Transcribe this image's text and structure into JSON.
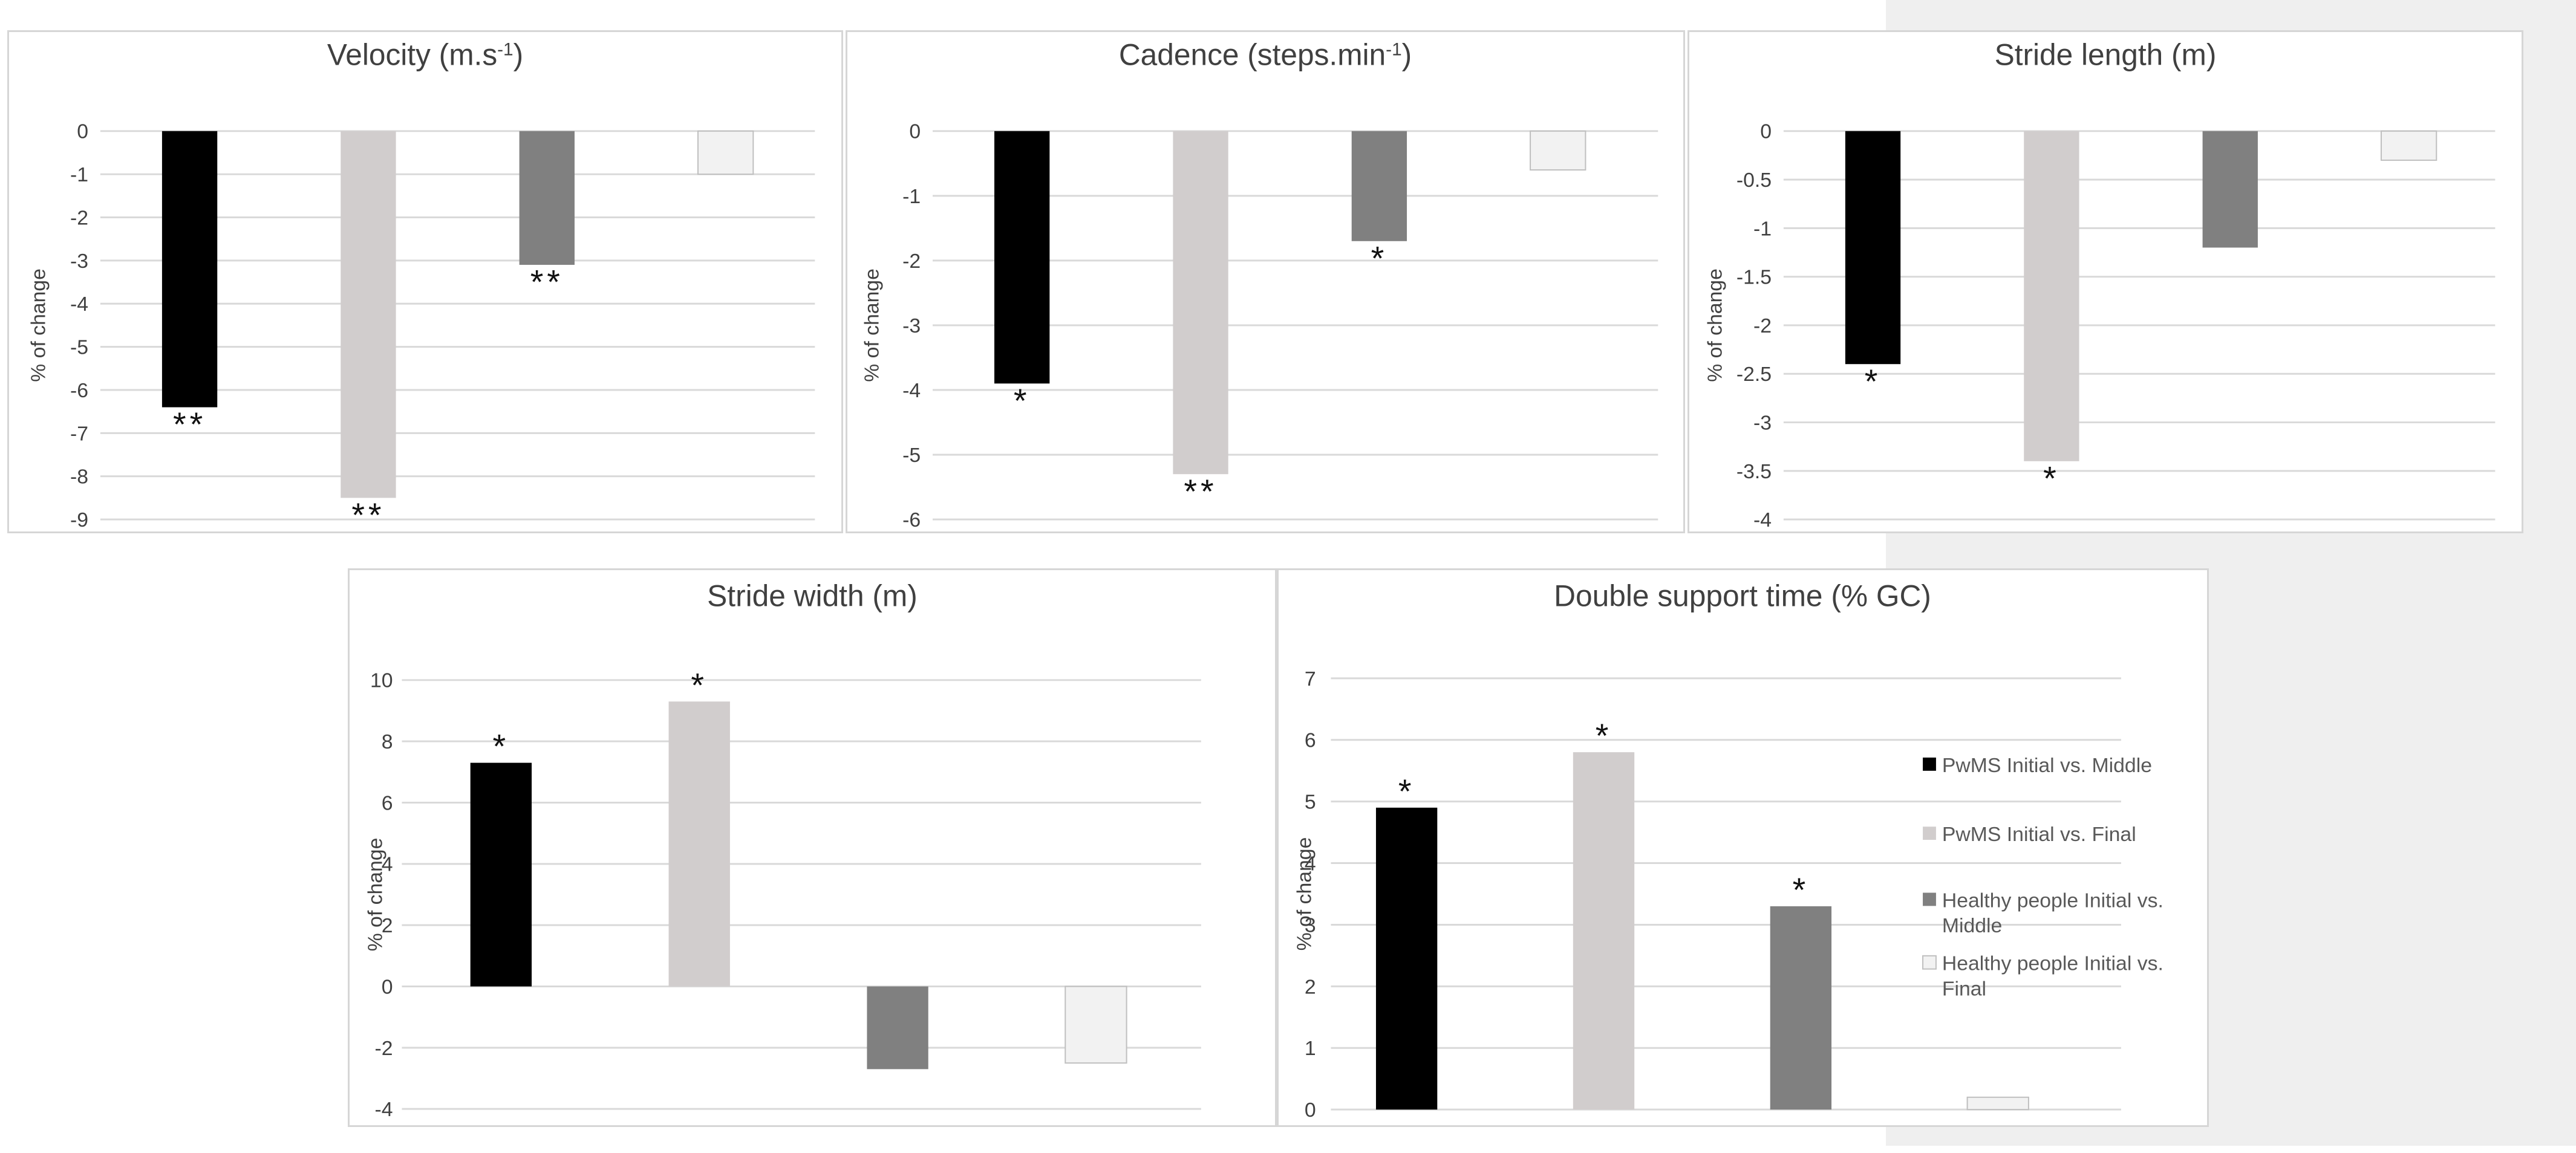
{
  "colors": {
    "pwms_mid": "#000000",
    "pwms_final": "#d1cdcd",
    "healthy_mid": "#808080",
    "healthy_final": "#f2f2f2",
    "grid": "#d9d9d9",
    "text": "#404040"
  },
  "legend": {
    "items": [
      {
        "lines": [
          "PwMS Initial vs. Middle"
        ]
      },
      {
        "lines": [
          "PwMS Initial vs. Final"
        ]
      },
      {
        "lines": [
          "Healthy people Initial vs.",
          "Middle"
        ]
      },
      {
        "lines": [
          "Healthy people Initial vs.",
          "Final"
        ]
      }
    ]
  },
  "chart_data": [
    {
      "type": "bar",
      "title": "Velocity (m.s",
      "title_superscript": "-1",
      "title_suffix": ")",
      "ylabel": "% of change",
      "ylim": [
        -9,
        0
      ],
      "yticks": [
        0,
        -1,
        -2,
        -3,
        -4,
        -5,
        -6,
        -7,
        -8,
        -9
      ],
      "ytick_labels": [
        "0",
        "-1",
        "-2",
        "-3",
        "-4",
        "-5",
        "-6",
        "-7",
        "-8",
        "-9"
      ],
      "series": [
        {
          "name": "PwMS Initial vs. Middle",
          "value": -6.4,
          "annotation": "**"
        },
        {
          "name": "PwMS Initial vs. Final",
          "value": -8.5,
          "annotation": "**"
        },
        {
          "name": "Healthy people Initial vs. Middle",
          "value": -3.1,
          "annotation": "**"
        },
        {
          "name": "Healthy people Initial vs. Final",
          "value": -1.0,
          "annotation": ""
        }
      ]
    },
    {
      "type": "bar",
      "title": "Cadence (steps.min",
      "title_superscript": "-1",
      "title_suffix": ")",
      "ylabel": "% of change",
      "ylim": [
        -6,
        0
      ],
      "yticks": [
        0,
        -1,
        -2,
        -3,
        -4,
        -5,
        -6
      ],
      "ytick_labels": [
        "0",
        "-1",
        "-2",
        "-3",
        "-4",
        "-5",
        "-6"
      ],
      "series": [
        {
          "name": "PwMS Initial vs. Middle",
          "value": -3.9,
          "annotation": "*"
        },
        {
          "name": "PwMS Initial vs. Final",
          "value": -5.3,
          "annotation": "**"
        },
        {
          "name": "Healthy people Initial vs. Middle",
          "value": -1.7,
          "annotation": "*"
        },
        {
          "name": "Healthy people Initial vs. Final",
          "value": -0.6,
          "annotation": ""
        }
      ]
    },
    {
      "type": "bar",
      "title": "Stride length (m)",
      "title_superscript": "",
      "title_suffix": "",
      "ylabel": "% of change",
      "ylim": [
        -4,
        0
      ],
      "yticks": [
        0,
        -0.5,
        -1,
        -1.5,
        -2,
        -2.5,
        -3,
        -3.5,
        -4
      ],
      "ytick_labels": [
        "0",
        "-0.5",
        "-1",
        "-1.5",
        "-2",
        "-2.5",
        "-3",
        "-3.5",
        "-4"
      ],
      "series": [
        {
          "name": "PwMS Initial vs. Middle",
          "value": -2.4,
          "annotation": "*"
        },
        {
          "name": "PwMS Initial vs. Final",
          "value": -3.4,
          "annotation": "*"
        },
        {
          "name": "Healthy people Initial vs. Middle",
          "value": -1.2,
          "annotation": ""
        },
        {
          "name": "Healthy people Initial vs. Final",
          "value": -0.3,
          "annotation": ""
        }
      ]
    },
    {
      "type": "bar",
      "title": "Stride width (m)",
      "title_superscript": "",
      "title_suffix": "",
      "ylabel": "% of change",
      "ylim": [
        -4,
        10
      ],
      "yticks": [
        10,
        8,
        6,
        4,
        2,
        0,
        -2,
        -4
      ],
      "ytick_labels": [
        "10",
        "8",
        "6",
        "4",
        "2",
        "0",
        "-2",
        "-4"
      ],
      "series": [
        {
          "name": "PwMS Initial vs. Middle",
          "value": 7.3,
          "annotation": "*"
        },
        {
          "name": "PwMS Initial vs. Final",
          "value": 9.3,
          "annotation": "*"
        },
        {
          "name": "Healthy people Initial vs. Middle",
          "value": -2.7,
          "annotation": ""
        },
        {
          "name": "Healthy people Initial vs. Final",
          "value": -2.5,
          "annotation": ""
        }
      ]
    },
    {
      "type": "bar",
      "title": "Double support time (% GC)",
      "title_superscript": "",
      "title_suffix": "",
      "ylabel": "% of change",
      "ylim": [
        0,
        7
      ],
      "yticks": [
        7,
        6,
        5,
        4,
        3,
        2,
        1,
        0
      ],
      "ytick_labels": [
        "7",
        "6",
        "5",
        "4",
        "3",
        "2",
        "1",
        "0"
      ],
      "series": [
        {
          "name": "PwMS Initial vs. Middle",
          "value": 4.9,
          "annotation": "*"
        },
        {
          "name": "PwMS Initial vs. Final",
          "value": 5.8,
          "annotation": "*"
        },
        {
          "name": "Healthy people Initial vs. Middle",
          "value": 3.3,
          "annotation": "*"
        },
        {
          "name": "Healthy people Initial vs. Final",
          "value": 0.2,
          "annotation": ""
        }
      ]
    }
  ]
}
